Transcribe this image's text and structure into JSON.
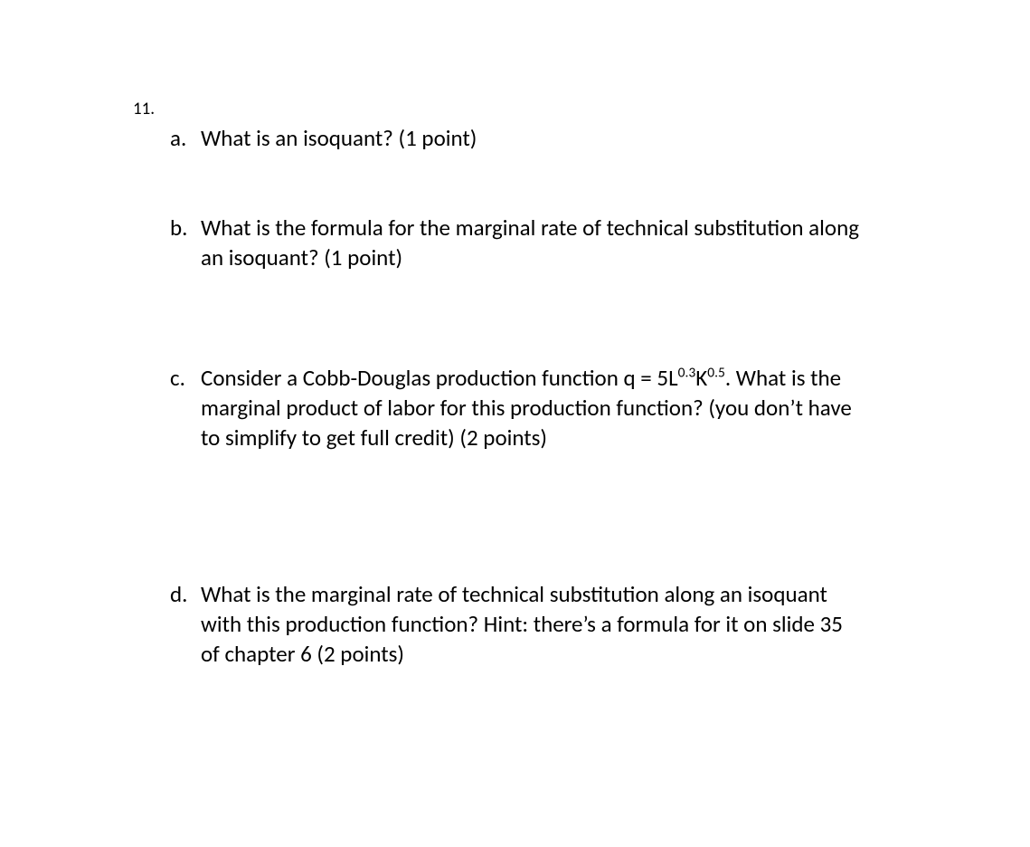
{
  "question_number": "11.",
  "items": [
    {
      "letter": "a.",
      "text": "What is an isoquant? (1 point)"
    },
    {
      "letter": "b.",
      "text": "What is the formula for the marginal rate of technical substitution along an isoquant?  (1 point)"
    },
    {
      "letter": "c.",
      "pre": "Consider a Cobb-Douglas production function q = 5L",
      "sup1": "0.3",
      "mid": "K",
      "sup2": "0.5",
      "post": ". What is the marginal product of labor for this production function? (you don’t have to simplify to get full credit) (2 points)"
    },
    {
      "letter": "d.",
      "text": "What is the marginal rate of technical substitution along an isoquant with this production function? Hint: there’s a formula for it on slide 35 of chapter 6 (2 points)"
    }
  ]
}
